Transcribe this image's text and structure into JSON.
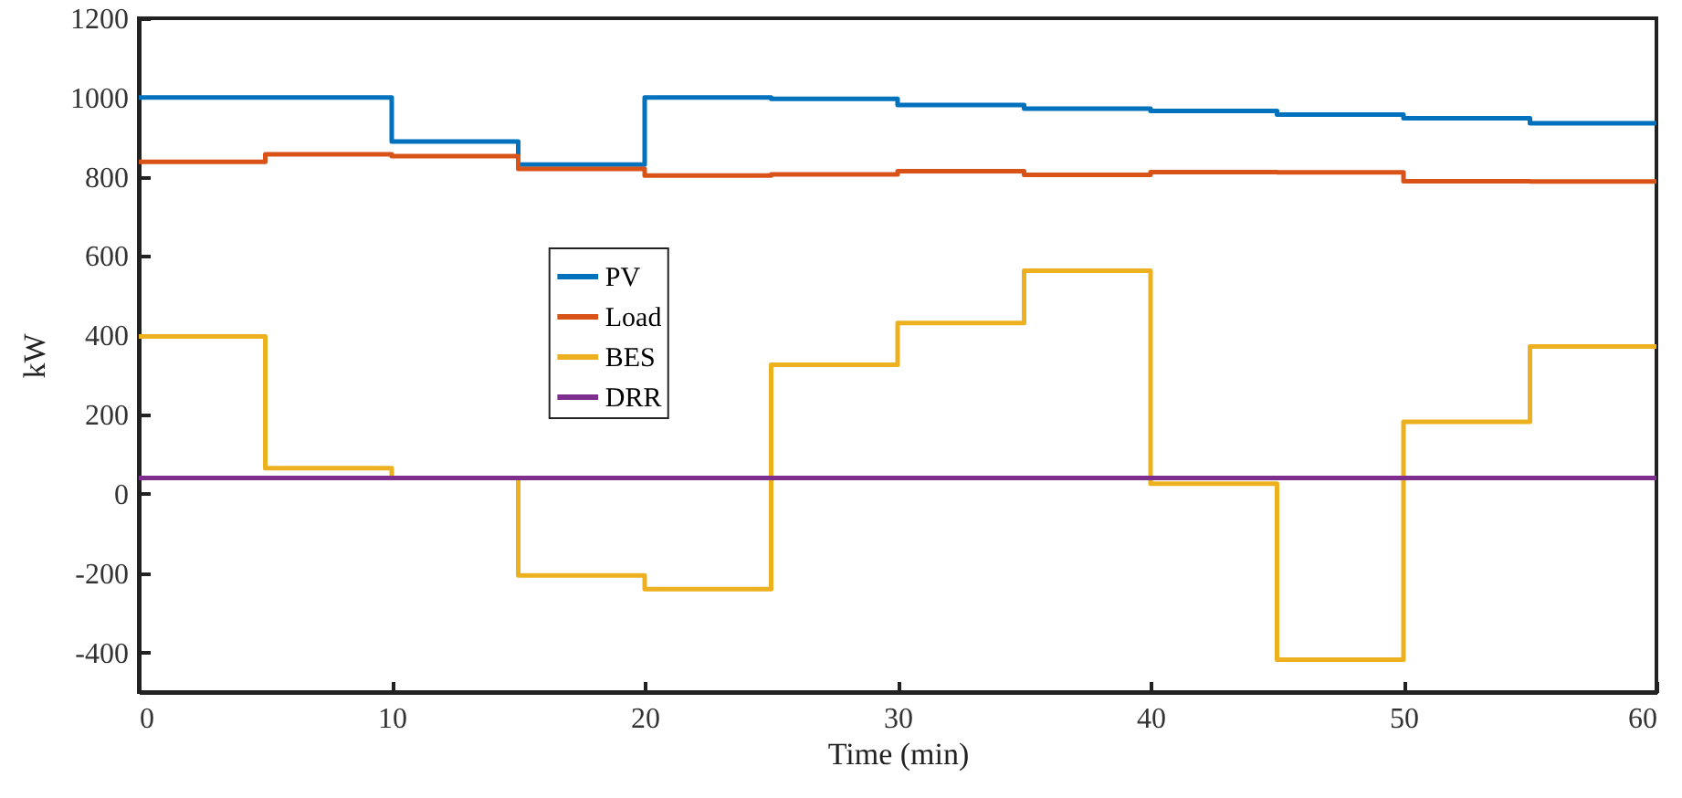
{
  "chart_data": {
    "type": "step",
    "xlabel": "Time (min)",
    "ylabel": "kW",
    "x": [
      0,
      5,
      10,
      15,
      20,
      25,
      30,
      35,
      40,
      45,
      50,
      55,
      60
    ],
    "series": [
      {
        "name": "PV",
        "color": "#0072bd",
        "values": [
          1000,
          1000,
          889,
          831,
          1000,
          997,
          981,
          972,
          966,
          957,
          948,
          935,
          935
        ]
      },
      {
        "name": "Load",
        "color": "#d95319",
        "values": [
          838,
          857,
          852,
          820,
          803,
          806,
          814,
          805,
          812,
          811,
          789,
          788,
          788
        ]
      },
      {
        "name": "BES",
        "color": "#edb120",
        "values": [
          397,
          65,
          40,
          -206,
          -240,
          326,
          431,
          563,
          26,
          -418,
          182,
          372,
          372
        ]
      },
      {
        "name": "DRR",
        "color": "#7e2f8e",
        "values": [
          40,
          40,
          40,
          40,
          40,
          40,
          40,
          40,
          40,
          40,
          40,
          40,
          40
        ]
      }
    ],
    "xlim": [
      0,
      60
    ],
    "xticks": [
      0,
      10,
      20,
      30,
      40,
      50,
      60
    ],
    "ylim": [
      -500,
      1200
    ],
    "yticks": [
      -400,
      -200,
      0,
      200,
      400,
      600,
      800,
      1000,
      1200
    ],
    "legend": "left",
    "grid": false,
    "line_style": "solid",
    "marker": "none"
  }
}
